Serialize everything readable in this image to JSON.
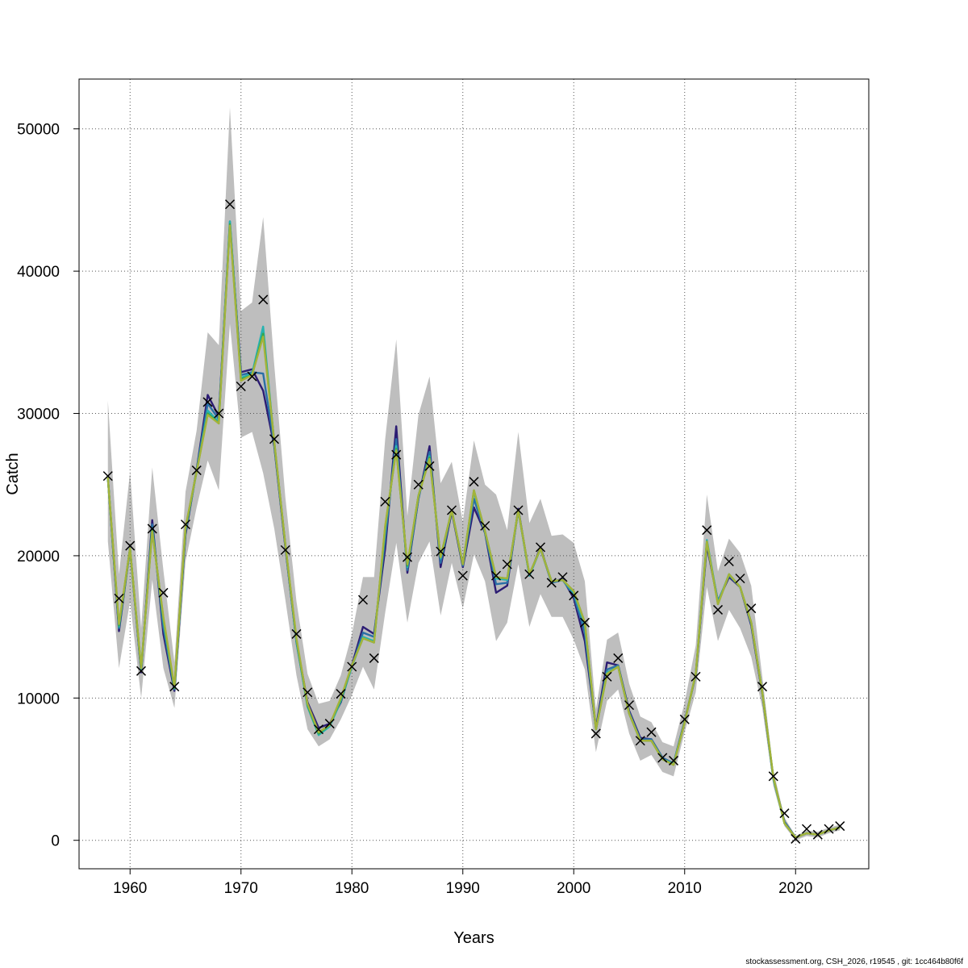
{
  "chart_data": {
    "type": "line",
    "xlabel": "Years",
    "ylabel": "Catch",
    "xlim": [
      1955.4,
      2026.6
    ],
    "ylim": [
      -2000,
      53500
    ],
    "xticks": [
      1960,
      1970,
      1980,
      1990,
      2000,
      2010,
      2020
    ],
    "yticks": [
      0,
      10000,
      20000,
      30000,
      40000,
      50000
    ],
    "grid": true,
    "legend": "none",
    "colors": {
      "band": "#bebebe",
      "observed": "#000000",
      "series": [
        "#2c1c73",
        "#2a6fa6",
        "#26b3b0",
        "#38a64a",
        "#a4b33a"
      ]
    },
    "observed": {
      "x": [
        1958,
        1959,
        1960,
        1961,
        1962,
        1963,
        1964,
        1965,
        1966,
        1967,
        1968,
        1969,
        1970,
        1971,
        1972,
        1973,
        1974,
        1975,
        1976,
        1977,
        1978,
        1979,
        1980,
        1981,
        1982,
        1983,
        1984,
        1985,
        1986,
        1987,
        1988,
        1989,
        1990,
        1991,
        1992,
        1993,
        1994,
        1995,
        1996,
        1997,
        1998,
        1999,
        2000,
        2001,
        2002,
        2003,
        2004,
        2005,
        2006,
        2007,
        2008,
        2009,
        2010,
        2011,
        2012,
        2013,
        2014,
        2015,
        2016,
        2017,
        2018,
        2019,
        2020,
        2021,
        2022,
        2023,
        2024
      ],
      "y": [
        25600,
        17000,
        20700,
        11900,
        21900,
        17400,
        10800,
        22200,
        26000,
        30800,
        30000,
        44700,
        31900,
        32600,
        38000,
        28200,
        20400,
        14500,
        10400,
        7800,
        8200,
        10300,
        12200,
        16900,
        12800,
        23800,
        27100,
        19900,
        25000,
        26300,
        20300,
        23200,
        18600,
        25200,
        22100,
        18600,
        19400,
        23200,
        18700,
        20600,
        18100,
        18500,
        17200,
        15300,
        7500,
        11500,
        12800,
        9500,
        7000,
        7600,
        5800,
        5600,
        8500,
        11500,
        21800,
        16200,
        19600,
        18400,
        16300,
        10800,
        4500,
        1900,
        100,
        800,
        400,
        800,
        1000
      ]
    },
    "series": [
      {
        "values": [
          25500,
          14700,
          20500,
          11800,
          22500,
          14500,
          10500,
          21500,
          26000,
          31300,
          29800,
          43300,
          32900,
          33100,
          31600,
          27700,
          20600,
          14000,
          9700,
          7900,
          8200,
          9700,
          12300,
          15000,
          14500,
          20500,
          29100,
          18800,
          24000,
          27700,
          19200,
          23100,
          19200,
          23400,
          21600,
          17400,
          17900,
          23300,
          18600,
          20600,
          18100,
          18400,
          17000,
          14000,
          7900,
          12500,
          12300,
          9100,
          7200,
          7100,
          5800,
          5400,
          8400,
          11600,
          20700,
          16800,
          18500,
          17800,
          15100,
          10300,
          4300,
          1300,
          200,
          500,
          400,
          700,
          900
        ]
      },
      {
        "values": [
          25500,
          14900,
          20500,
          11900,
          22200,
          15000,
          10600,
          21700,
          26000,
          30700,
          29600,
          43500,
          32700,
          32900,
          32800,
          27800,
          20700,
          13900,
          9500,
          7600,
          8100,
          9800,
          12200,
          14600,
          14300,
          21200,
          28200,
          19000,
          24000,
          27300,
          19500,
          23200,
          19300,
          24000,
          21600,
          18000,
          18100,
          23200,
          18600,
          20500,
          18100,
          18300,
          17200,
          14600,
          7800,
          12000,
          12300,
          9000,
          7100,
          7100,
          5800,
          5400,
          8400,
          11600,
          20900,
          16800,
          18600,
          17800,
          15200,
          10400,
          4300,
          1300,
          200,
          500,
          400,
          700,
          900
        ]
      },
      {
        "values": [
          25500,
          15000,
          20500,
          12000,
          21900,
          15400,
          10700,
          21800,
          25900,
          30200,
          29400,
          43500,
          32500,
          32800,
          36100,
          27900,
          20800,
          14000,
          9400,
          7400,
          8000,
          9800,
          12200,
          14300,
          14000,
          21800,
          27700,
          19200,
          24200,
          27000,
          19800,
          23200,
          19400,
          24500,
          21700,
          18400,
          18300,
          23200,
          18600,
          20500,
          18200,
          18300,
          17400,
          15100,
          7800,
          11800,
          12200,
          8900,
          7000,
          7000,
          5700,
          5400,
          8300,
          11700,
          21100,
          16700,
          18700,
          17800,
          15300,
          10400,
          4300,
          1200,
          200,
          500,
          400,
          700,
          900
        ]
      },
      {
        "values": [
          25500,
          15100,
          20500,
          12100,
          21800,
          15600,
          10700,
          21900,
          25900,
          30000,
          29300,
          43300,
          32400,
          32700,
          35600,
          28000,
          20800,
          14100,
          9500,
          7500,
          8100,
          9900,
          12300,
          14200,
          13900,
          22000,
          27500,
          19300,
          24200,
          26900,
          19900,
          23200,
          19400,
          24600,
          21700,
          18500,
          18400,
          23200,
          18700,
          20500,
          18200,
          18300,
          17500,
          15300,
          7800,
          11700,
          12200,
          8900,
          7000,
          7000,
          5700,
          5300,
          8300,
          11700,
          21000,
          16600,
          18700,
          17800,
          15300,
          10400,
          4400,
          1200,
          200,
          500,
          400,
          700,
          900
        ]
      },
      {
        "values": [
          25500,
          15200,
          20500,
          12100,
          21700,
          15700,
          10800,
          22000,
          25900,
          29900,
          29300,
          43200,
          32300,
          32700,
          35400,
          28000,
          20800,
          14200,
          9600,
          7600,
          8100,
          10000,
          12300,
          14200,
          13900,
          22100,
          27400,
          19400,
          24200,
          26800,
          19900,
          23200,
          19400,
          24600,
          21700,
          18500,
          18400,
          23200,
          18700,
          20500,
          18200,
          18300,
          17500,
          15300,
          7800,
          11700,
          12200,
          8900,
          7000,
          7000,
          5700,
          5300,
          8300,
          11700,
          21000,
          16600,
          18700,
          17800,
          15300,
          10400,
          4400,
          1200,
          200,
          500,
          400,
          700,
          900
        ]
      }
    ],
    "band_lower": [
      21000,
      12100,
      16800,
      10000,
      18300,
      12100,
      9300,
      19600,
      23400,
      26700,
      24600,
      36300,
      28300,
      28700,
      25800,
      21900,
      16900,
      11600,
      7800,
      6600,
      7100,
      8500,
      10200,
      12200,
      10600,
      16000,
      20900,
      15300,
      19500,
      21000,
      15800,
      19500,
      16300,
      20100,
      18200,
      14000,
      15300,
      19400,
      15000,
      17300,
      15700,
      15700,
      14100,
      12000,
      6200,
      9800,
      10600,
      7500,
      5600,
      6000,
      4800,
      4500,
      7600,
      10400,
      17800,
      14000,
      16200,
      14900,
      12900,
      9300,
      3800,
      1000,
      0,
      300,
      200,
      500,
      700
    ],
    "band_upper": [
      30900,
      18700,
      25900,
      14900,
      26200,
      19000,
      12500,
      24500,
      28800,
      35700,
      34800,
      51500,
      37200,
      37800,
      43800,
      33400,
      24100,
      16800,
      11700,
      9600,
      9800,
      11600,
      14500,
      18500,
      18500,
      28200,
      35200,
      22800,
      29900,
      32600,
      25100,
      26600,
      22400,
      28100,
      25000,
      24300,
      21800,
      28700,
      22300,
      24000,
      21400,
      21500,
      20900,
      18200,
      9200,
      14100,
      14600,
      11000,
      8700,
      8300,
      6900,
      6600,
      9700,
      13700,
      24300,
      18900,
      21200,
      20200,
      17900,
      11500,
      4900,
      1600,
      300,
      700,
      600,
      900,
      1100
    ],
    "band_years": [
      1958,
      1959,
      1960,
      1961,
      1962,
      1963,
      1964,
      1965,
      1966,
      1967,
      1968,
      1969,
      1970,
      1971,
      1972,
      1973,
      1974,
      1975,
      1976,
      1977,
      1978,
      1979,
      1980,
      1981,
      1982,
      1983,
      1984,
      1985,
      1986,
      1987,
      1988,
      1989,
      1990,
      1991,
      1992,
      1993,
      1994,
      1995,
      1996,
      1997,
      1998,
      1999,
      2000,
      2001,
      2002,
      2003,
      2004,
      2005,
      2006,
      2007,
      2008,
      2009,
      2010,
      2011,
      2012,
      2013,
      2014,
      2015,
      2016,
      2017,
      2018,
      2019,
      2020,
      2021,
      2022,
      2023,
      2024
    ]
  },
  "footer": "stockassessment.org, CSH_2026, r19545 , git: 1cc464b80f6f"
}
